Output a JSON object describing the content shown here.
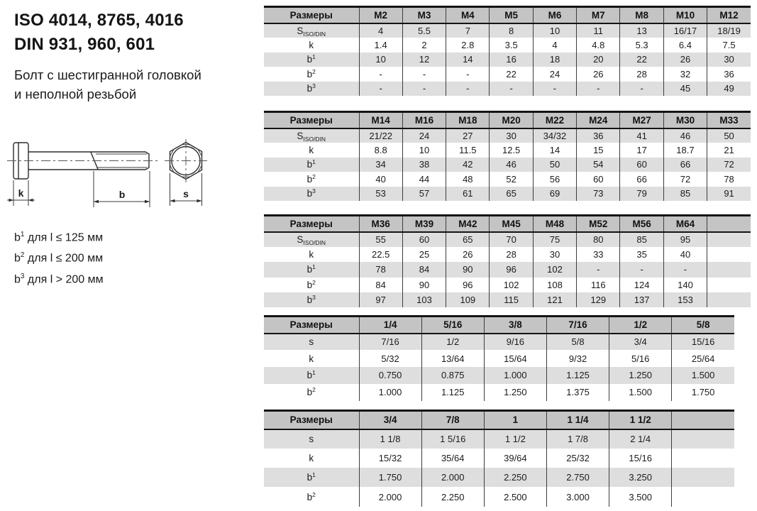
{
  "page": {
    "title_line1": "ISO 4014, 8765, 4016",
    "title_line2": "DIN 931, 960, 601",
    "subtitle_line1": "Болт с шестигранной головкой",
    "subtitle_line2": "и неполной резьбой"
  },
  "drawing": {
    "k_label": "k",
    "b_label": "b",
    "s_label": "s"
  },
  "footnotes": [
    {
      "base": "b",
      "sup": "1",
      "text": "для l ≤ 125 мм"
    },
    {
      "base": "b",
      "sup": "2",
      "text": "для l ≤ 200 мм"
    },
    {
      "base": "b",
      "sup": "3",
      "text": "для l > 200 мм"
    }
  ],
  "colors": {
    "header_bg": "#c4c4c4",
    "stripe_bg": "#dedede",
    "border": "#141414"
  },
  "tables": [
    {
      "name": "metric-m2-m12",
      "header": [
        "Размеры",
        "M2",
        "M3",
        "M4",
        "M5",
        "M6",
        "M7",
        "M8",
        "M10",
        "M12"
      ],
      "rows": [
        {
          "label": {
            "base": "S",
            "sub": "ISO/DIN"
          },
          "values": [
            "4",
            "5.5",
            "7",
            "8",
            "10",
            "11",
            "13",
            "16/17",
            "18/19"
          ]
        },
        {
          "label": {
            "base": "k"
          },
          "values": [
            "1.4",
            "2",
            "2.8",
            "3.5",
            "4",
            "4.8",
            "5.3",
            "6.4",
            "7.5"
          ]
        },
        {
          "label": {
            "base": "b",
            "sup": "1"
          },
          "values": [
            "10",
            "12",
            "14",
            "16",
            "18",
            "20",
            "22",
            "26",
            "30"
          ]
        },
        {
          "label": {
            "base": "b",
            "sup": "2"
          },
          "values": [
            "-",
            "-",
            "-",
            "22",
            "24",
            "26",
            "28",
            "32",
            "36"
          ]
        },
        {
          "label": {
            "base": "b",
            "sup": "3"
          },
          "values": [
            "-",
            "-",
            "-",
            "-",
            "-",
            "-",
            "-",
            "45",
            "49"
          ]
        }
      ]
    },
    {
      "name": "metric-m14-m33",
      "header": [
        "Размеры",
        "M14",
        "M16",
        "M18",
        "M20",
        "M22",
        "M24",
        "M27",
        "M30",
        "M33"
      ],
      "rows": [
        {
          "label": {
            "base": "S",
            "sub": "ISO/DIN"
          },
          "values": [
            "21/22",
            "24",
            "27",
            "30",
            "34/32",
            "36",
            "41",
            "46",
            "50"
          ]
        },
        {
          "label": {
            "base": "k"
          },
          "values": [
            "8.8",
            "10",
            "11.5",
            "12.5",
            "14",
            "15",
            "17",
            "18.7",
            "21"
          ]
        },
        {
          "label": {
            "base": "b",
            "sup": "1"
          },
          "values": [
            "34",
            "38",
            "42",
            "46",
            "50",
            "54",
            "60",
            "66",
            "72"
          ]
        },
        {
          "label": {
            "base": "b",
            "sup": "2"
          },
          "values": [
            "40",
            "44",
            "48",
            "52",
            "56",
            "60",
            "66",
            "72",
            "78"
          ]
        },
        {
          "label": {
            "base": "b",
            "sup": "3"
          },
          "values": [
            "53",
            "57",
            "61",
            "65",
            "69",
            "73",
            "79",
            "85",
            "91"
          ]
        }
      ]
    },
    {
      "name": "metric-m36-m64",
      "header": [
        "Размеры",
        "M36",
        "M39",
        "M42",
        "M45",
        "M48",
        "M52",
        "M56",
        "M64",
        ""
      ],
      "rows": [
        {
          "label": {
            "base": "S",
            "sub": "ISO/DIN"
          },
          "values": [
            "55",
            "60",
            "65",
            "70",
            "75",
            "80",
            "85",
            "95",
            ""
          ]
        },
        {
          "label": {
            "base": "k"
          },
          "values": [
            "22.5",
            "25",
            "26",
            "28",
            "30",
            "33",
            "35",
            "40",
            ""
          ]
        },
        {
          "label": {
            "base": "b",
            "sup": "1"
          },
          "values": [
            "78",
            "84",
            "90",
            "96",
            "102",
            "-",
            "-",
            "-",
            ""
          ]
        },
        {
          "label": {
            "base": "b",
            "sup": "2"
          },
          "values": [
            "84",
            "90",
            "96",
            "102",
            "108",
            "116",
            "124",
            "140",
            ""
          ]
        },
        {
          "label": {
            "base": "b",
            "sup": "3"
          },
          "values": [
            "97",
            "103",
            "109",
            "115",
            "121",
            "129",
            "137",
            "153",
            ""
          ]
        }
      ]
    },
    {
      "name": "imperial-quarter-to-fiveeighths",
      "header": [
        "Размеры",
        "1/4",
        "5/16",
        "3/8",
        "7/16",
        "1/2",
        "5/8"
      ],
      "rows": [
        {
          "label": {
            "base": "s"
          },
          "values": [
            "7/16",
            "1/2",
            "9/16",
            "5/8",
            "3/4",
            "15/16"
          ]
        },
        {
          "label": {
            "base": "k"
          },
          "values": [
            "5/32",
            "13/64",
            "15/64",
            "9/32",
            "5/16",
            "25/64"
          ]
        },
        {
          "label": {
            "base": "b",
            "sup": "1"
          },
          "values": [
            "0.750",
            "0.875",
            "1.000",
            "1.125",
            "1.250",
            "1.500"
          ]
        },
        {
          "label": {
            "base": "b",
            "sup": "2"
          },
          "values": [
            "1.000",
            "1.125",
            "1.250",
            "1.375",
            "1.500",
            "1.750"
          ]
        }
      ]
    },
    {
      "name": "imperial-threequarters-to-oneandhalf",
      "header": [
        "Размеры",
        "3/4",
        "7/8",
        "1",
        "1 1/4",
        "1 1/2",
        ""
      ],
      "rows": [
        {
          "label": {
            "base": "s"
          },
          "values": [
            "1 1/8",
            "1 5/16",
            "1 1/2",
            "1 7/8",
            "2 1/4",
            ""
          ]
        },
        {
          "label": {
            "base": "k"
          },
          "values": [
            "15/32",
            "35/64",
            "39/64",
            "25/32",
            "15/16",
            ""
          ]
        },
        {
          "label": {
            "base": "b",
            "sup": "1"
          },
          "values": [
            "1.750",
            "2.000",
            "2.250",
            "2.750",
            "3.250",
            ""
          ]
        },
        {
          "label": {
            "base": "b",
            "sup": "2"
          },
          "values": [
            "2.000",
            "2.250",
            "2.500",
            "3.000",
            "3.500",
            ""
          ]
        }
      ]
    }
  ]
}
